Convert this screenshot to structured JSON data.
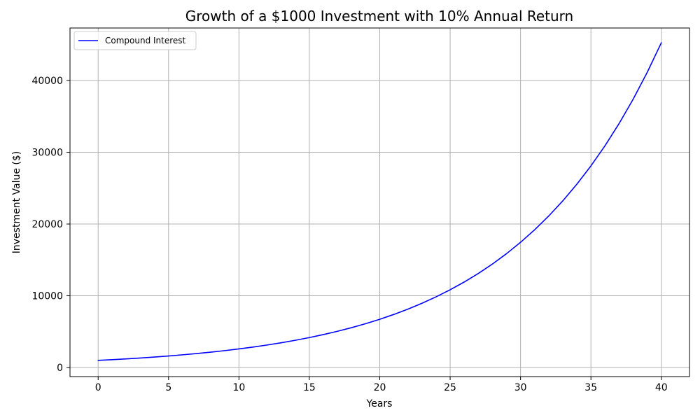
{
  "colors": {
    "series": "#0000ff",
    "grid": "#b0b0b0",
    "axis": "#000000",
    "background": "#ffffff"
  },
  "chart_data": {
    "type": "line",
    "title": "Growth of a $1000 Investment with 10% Annual Return",
    "xlabel": "Years",
    "ylabel": "Investment Value ($)",
    "xlim": [
      -2,
      42
    ],
    "ylim": [
      -1263,
      47316
    ],
    "x_ticks": [
      0,
      5,
      10,
      15,
      20,
      25,
      30,
      35,
      40
    ],
    "y_ticks": [
      0,
      10000,
      20000,
      30000,
      40000
    ],
    "x_tick_labels": [
      "0",
      "5",
      "10",
      "15",
      "20",
      "25",
      "30",
      "35",
      "40"
    ],
    "y_tick_labels": [
      "0",
      "10000",
      "20000",
      "30000",
      "40000"
    ],
    "grid": true,
    "legend_position": "top-left",
    "series": [
      {
        "name": "Compound Interest",
        "color": "#0000ff",
        "x": [
          0,
          1,
          2,
          3,
          4,
          5,
          6,
          7,
          8,
          9,
          10,
          11,
          12,
          13,
          14,
          15,
          16,
          17,
          18,
          19,
          20,
          21,
          22,
          23,
          24,
          25,
          26,
          27,
          28,
          29,
          30,
          31,
          32,
          33,
          34,
          35,
          36,
          37,
          38,
          39,
          40
        ],
        "y": [
          1000,
          1100,
          1210,
          1331,
          1464,
          1611,
          1772,
          1949,
          2144,
          2358,
          2594,
          2853,
          3138,
          3452,
          3797,
          4177,
          4595,
          5054,
          5560,
          6116,
          6727,
          7400,
          8140,
          8954,
          9850,
          10835,
          11918,
          13110,
          14421,
          15863,
          17449,
          19194,
          21114,
          23225,
          25548,
          28102,
          30913,
          34004,
          37404,
          41145,
          45259
        ]
      }
    ]
  }
}
